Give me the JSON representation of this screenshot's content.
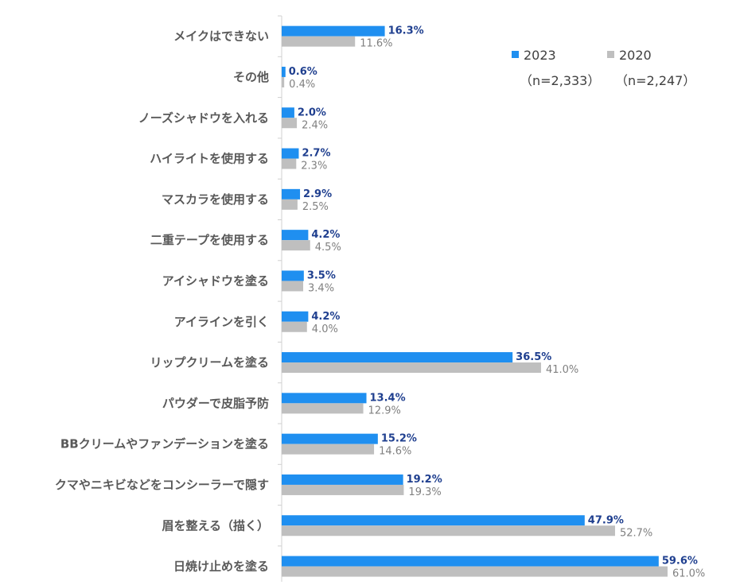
{
  "chart_data": {
    "type": "bar",
    "orientation": "horizontal",
    "categories": [
      "メイクはできない",
      "その他",
      "ノーズシャドウを入れる",
      "ハイライトを使用する",
      "マスカラを使用する",
      "二重テープを使用する",
      "アイシャドウを塗る",
      "アイラインを引く",
      "リップクリームを塗る",
      "パウダーで皮脂予防",
      "BBクリームやファンデーションを塗る",
      "クマやニキビなどをコンシーラーで隠す",
      "眉を整える（描く）",
      "日焼け止めを塗る"
    ],
    "series": [
      {
        "name": "2023",
        "sample": "（n=2,333）",
        "color": "#1f8ff0",
        "label_color": "#1f3f8f",
        "values": [
          16.3,
          0.6,
          2.0,
          2.7,
          2.9,
          4.2,
          3.5,
          4.2,
          36.5,
          13.4,
          15.2,
          19.2,
          47.9,
          59.6
        ]
      },
      {
        "name": "2020",
        "sample": "（n=2,247）",
        "color": "#bfbfbf",
        "label_color": "#808080",
        "values": [
          11.6,
          0.4,
          2.4,
          2.3,
          2.5,
          4.5,
          3.4,
          4.0,
          41.0,
          12.9,
          14.6,
          19.3,
          52.7,
          61.0
        ]
      }
    ],
    "value_suffix": "%",
    "xlim": [
      0,
      100
    ],
    "grid": false,
    "legend_position": "top-right"
  }
}
